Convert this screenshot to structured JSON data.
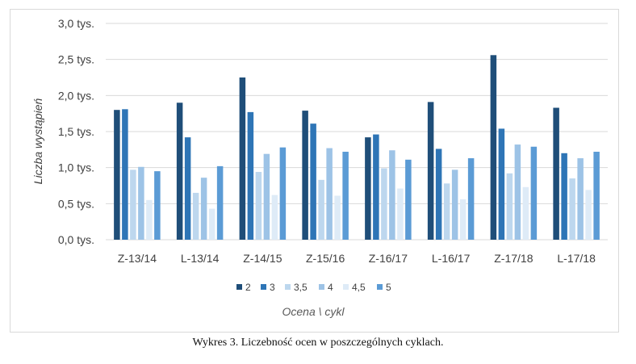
{
  "figure": {
    "caption": "Wykres 3. Liczebność ocen w poszczególnych cyklach."
  },
  "chart_data": {
    "type": "bar",
    "categories": [
      "Z-13/14",
      "L-13/14",
      "Z-14/15",
      "Z-15/16",
      "Z-16/17",
      "L-16/17",
      "Z-17/18",
      "L-17/18"
    ],
    "series": [
      {
        "name": "2",
        "color": "#1f4e79",
        "values": [
          1.8,
          1.9,
          2.25,
          1.79,
          1.42,
          1.91,
          2.56,
          1.83
        ]
      },
      {
        "name": "3",
        "color": "#2e75b6",
        "values": [
          1.81,
          1.42,
          1.77,
          1.61,
          1.46,
          1.26,
          1.54,
          1.2
        ]
      },
      {
        "name": "3,5",
        "color": "#bdd7ee",
        "values": [
          0.97,
          0.65,
          0.94,
          0.83,
          0.99,
          0.78,
          0.92,
          0.85
        ]
      },
      {
        "name": "4",
        "color": "#9dc3e6",
        "values": [
          1.01,
          0.86,
          1.19,
          1.27,
          1.24,
          0.97,
          1.32,
          1.13
        ]
      },
      {
        "name": "4,5",
        "color": "#deebf7",
        "values": [
          0.55,
          0.43,
          0.62,
          0.61,
          0.71,
          0.56,
          0.73,
          0.69
        ]
      },
      {
        "name": "5",
        "color": "#5b9bd5",
        "values": [
          0.95,
          1.02,
          1.28,
          1.22,
          1.11,
          1.13,
          1.29,
          1.22
        ]
      }
    ],
    "yticks": [
      "0,0 tys.",
      "0,5 tys.",
      "1,0 tys.",
      "1,5 tys.",
      "2,0 tys.",
      "2,5 tys.",
      "3,0 tys."
    ],
    "ylim": [
      0,
      3
    ],
    "xlabel": "Ocena \\ cykl",
    "ylabel": "Liczba wystąpień",
    "grid": true,
    "legend": "bottom"
  }
}
